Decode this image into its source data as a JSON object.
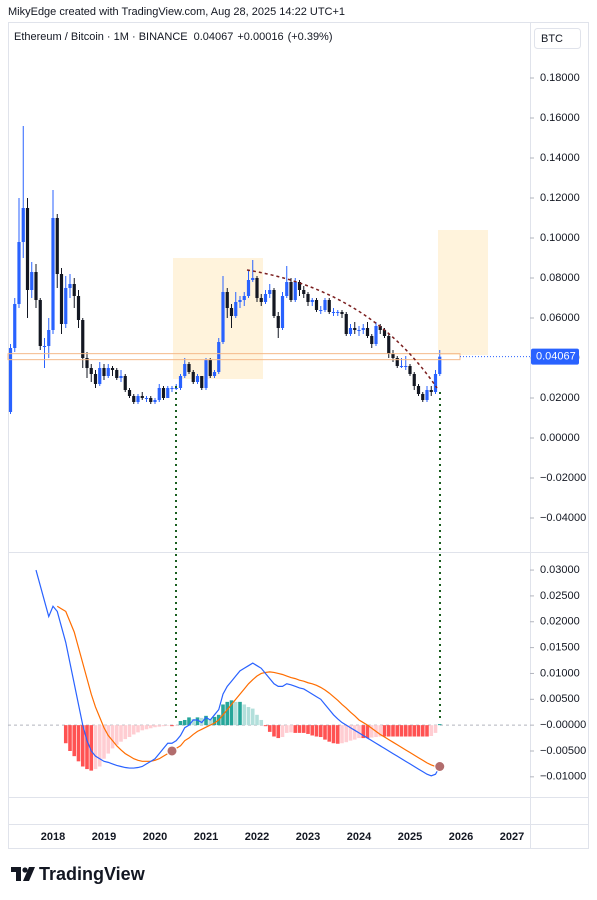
{
  "watermark": "MikyEdge created with TradingView.com, Aug 28, 2025 14:22 UTC+1",
  "currency": "BTC",
  "brand": "TradingView",
  "chart_data": [
    {
      "type": "candlestick",
      "title": "Ethereum / Bitcoin · 1M · BINANCE",
      "change": "+0.00016",
      "change_pct": "(+0.39%)",
      "up_color": "#2962ff",
      "down_color": "#131722",
      "last_color": "#f57c00",
      "grid": false,
      "ylim": [
        -0.057,
        0.208
      ],
      "yticks": [
        {
          "value": 0.18,
          "label": "0.18000"
        },
        {
          "value": 0.16,
          "label": "0.16000"
        },
        {
          "value": 0.14,
          "label": "0.14000"
        },
        {
          "value": 0.12,
          "label": "0.12000"
        },
        {
          "value": 0.1,
          "label": "0.10000"
        },
        {
          "value": 0.08,
          "label": "0.08000"
        },
        {
          "value": 0.06,
          "label": "0.06000"
        },
        {
          "value": 0.04,
          "label": "0.04000"
        },
        {
          "value": 0.02,
          "label": "0.02000"
        },
        {
          "value": 0,
          "label": "0.00000"
        },
        {
          "value": -0.02,
          "label": "−0.02000"
        },
        {
          "value": -0.04,
          "label": "−0.04000"
        }
      ],
      "categories": [
        null,
        null,
        null,
        null,
        null,
        null,
        null,
        null,
        null,
        null,
        "2018",
        null,
        null,
        null,
        null,
        null,
        null,
        null,
        null,
        null,
        null,
        null,
        "2019",
        null,
        null,
        null,
        null,
        null,
        null,
        null,
        null,
        null,
        null,
        null,
        "2020",
        null,
        null,
        null,
        null,
        null,
        null,
        null,
        null,
        null,
        null,
        null,
        "2021",
        null,
        null,
        null,
        null,
        null,
        null,
        null,
        null,
        null,
        null,
        null,
        "2022",
        null,
        null,
        null,
        null,
        null,
        null,
        null,
        null,
        null,
        null,
        null,
        "2023",
        null,
        null,
        null,
        null,
        null,
        null,
        null,
        null,
        null,
        null,
        null,
        "2024",
        null,
        null,
        null,
        null,
        null,
        null,
        null,
        null,
        null,
        null,
        null,
        "2025",
        null,
        null,
        null,
        null,
        null,
        null,
        null,
        null,
        null,
        null,
        null,
        "2026",
        null,
        null,
        null,
        null,
        null,
        null,
        null,
        null,
        null,
        null,
        null,
        "2027",
        null,
        null,
        null,
        null
      ],
      "open": [
        0.013,
        0.045,
        0.067,
        0.098,
        0.115,
        0.074,
        0.083,
        0.069,
        0.046,
        0.046,
        0.054,
        0.11,
        0.082,
        0.057,
        0.075,
        0.077,
        0.071,
        0.059,
        0.04,
        0.035,
        0.032,
        0.027,
        0.035,
        0.031,
        0.035,
        0.034,
        0.03,
        0.031,
        0.024,
        0.021,
        0.018,
        0.021,
        0.02,
        0.02,
        0.018,
        0.019,
        0.025,
        0.02,
        0.025,
        0.025,
        0.025,
        0.031,
        0.037,
        0.033,
        0.028,
        0.031,
        0.025,
        0.039,
        0.031,
        0.033,
        0.048,
        0.073,
        0.065,
        0.061,
        0.068,
        0.069,
        0.071,
        0.079,
        0.08,
        0.07,
        0.068,
        0.072,
        0.074,
        0.061,
        0.055,
        0.071,
        0.078,
        0.069,
        0.078,
        0.074,
        0.072,
        0.068,
        0.069,
        0.064,
        0.064,
        0.069,
        0.063,
        0.063,
        0.063,
        0.062,
        0.052,
        0.055,
        0.054,
        0.054,
        0.055,
        0.051,
        0.047,
        0.056,
        0.054,
        0.051,
        0.042,
        0.04,
        0.036,
        0.036,
        0.036,
        0.032,
        0.026,
        0.022,
        0.019,
        0.024,
        0.023,
        0.032,
        null,
        null,
        null,
        null,
        null,
        null,
        null,
        null,
        null,
        null,
        null,
        null,
        null,
        null,
        null,
        null,
        null,
        null,
        null,
        null,
        null
      ],
      "high": [
        0.047,
        0.07,
        0.12,
        0.156,
        0.12,
        0.088,
        0.087,
        0.07,
        0.05,
        0.06,
        0.124,
        0.112,
        0.085,
        0.081,
        0.082,
        0.08,
        0.074,
        0.06,
        0.043,
        0.037,
        0.034,
        0.038,
        0.037,
        0.037,
        0.036,
        0.035,
        0.034,
        0.032,
        0.025,
        0.022,
        0.022,
        0.023,
        0.021,
        0.021,
        0.02,
        0.027,
        0.026,
        0.026,
        0.026,
        0.027,
        0.032,
        0.04,
        0.038,
        0.034,
        0.032,
        0.031,
        0.04,
        0.04,
        0.034,
        0.05,
        0.081,
        0.075,
        0.067,
        0.073,
        0.071,
        0.073,
        0.084,
        0.089,
        0.081,
        0.072,
        0.074,
        0.077,
        0.075,
        0.063,
        0.073,
        0.086,
        0.08,
        0.08,
        0.079,
        0.076,
        0.073,
        0.07,
        0.07,
        0.066,
        0.07,
        0.07,
        0.065,
        0.064,
        0.064,
        0.063,
        0.057,
        0.058,
        0.056,
        0.057,
        0.058,
        0.052,
        0.058,
        0.057,
        0.055,
        0.052,
        0.044,
        0.041,
        0.04,
        0.041,
        0.037,
        0.033,
        0.027,
        0.023,
        0.026,
        0.026,
        0.034,
        0.044,
        null,
        null,
        null,
        null,
        null,
        null,
        null,
        null,
        null,
        null,
        null,
        null,
        null,
        null,
        null,
        null,
        null,
        null,
        null,
        null,
        null
      ],
      "low": [
        0.012,
        0.043,
        0.065,
        0.09,
        0.06,
        0.07,
        0.065,
        0.044,
        0.035,
        0.04,
        0.052,
        0.075,
        0.052,
        0.055,
        0.07,
        0.065,
        0.055,
        0.035,
        0.03,
        0.028,
        0.025,
        0.026,
        0.029,
        0.03,
        0.031,
        0.029,
        0.028,
        0.023,
        0.02,
        0.017,
        0.017,
        0.019,
        0.018,
        0.017,
        0.017,
        0.018,
        0.019,
        0.02,
        0.023,
        0.024,
        0.024,
        0.03,
        0.032,
        0.027,
        0.027,
        0.024,
        0.024,
        0.03,
        0.03,
        0.032,
        0.047,
        0.06,
        0.055,
        0.06,
        0.065,
        0.066,
        0.07,
        0.078,
        0.068,
        0.066,
        0.067,
        0.07,
        0.06,
        0.05,
        0.054,
        0.07,
        0.068,
        0.068,
        0.071,
        0.07,
        0.066,
        0.066,
        0.063,
        0.062,
        0.063,
        0.062,
        0.061,
        0.061,
        0.06,
        0.051,
        0.051,
        0.052,
        0.051,
        0.052,
        0.05,
        0.045,
        0.046,
        0.052,
        0.05,
        0.04,
        0.038,
        0.035,
        0.035,
        0.034,
        0.031,
        0.024,
        0.021,
        0.018,
        0.018,
        0.021,
        0.022,
        0.031,
        null,
        null,
        null,
        null,
        null,
        null,
        null,
        null,
        null,
        null,
        null,
        null,
        null,
        null,
        null,
        null,
        null,
        null,
        null,
        null,
        null
      ],
      "close": [
        0.045,
        0.067,
        0.098,
        0.115,
        0.074,
        0.083,
        0.069,
        0.046,
        0.046,
        0.054,
        0.11,
        0.082,
        0.057,
        0.075,
        0.077,
        0.071,
        0.059,
        0.04,
        0.035,
        0.032,
        0.027,
        0.035,
        0.031,
        0.035,
        0.034,
        0.03,
        0.031,
        0.024,
        0.021,
        0.018,
        0.021,
        0.02,
        0.02,
        0.018,
        0.019,
        0.025,
        0.02,
        0.025,
        0.025,
        0.025,
        0.031,
        0.037,
        0.033,
        0.028,
        0.031,
        0.025,
        0.039,
        0.031,
        0.033,
        0.048,
        0.073,
        0.065,
        0.061,
        0.068,
        0.069,
        0.071,
        0.079,
        0.08,
        0.07,
        0.068,
        0.072,
        0.074,
        0.061,
        0.055,
        0.071,
        0.078,
        0.069,
        0.078,
        0.074,
        0.072,
        0.068,
        0.069,
        0.064,
        0.064,
        0.069,
        0.063,
        0.063,
        0.063,
        0.062,
        0.052,
        0.055,
        0.054,
        0.054,
        0.055,
        0.051,
        0.047,
        0.056,
        0.054,
        0.051,
        0.042,
        0.04,
        0.036,
        0.036,
        0.036,
        0.032,
        0.026,
        0.022,
        0.019,
        0.024,
        0.023,
        0.032,
        0.04067,
        null,
        null,
        null,
        null,
        null,
        null,
        null,
        null,
        null,
        null,
        null,
        null,
        null,
        null,
        null,
        null,
        null,
        null,
        null,
        null,
        null
      ]
    },
    {
      "type": "macd",
      "ylim": [
        -0.0139,
        0.0333
      ],
      "grid": false,
      "yticks": [
        {
          "value": 0.03,
          "label": "0.03000"
        },
        {
          "value": 0.025,
          "label": "0.02500"
        },
        {
          "value": 0.02,
          "label": "0.02000"
        },
        {
          "value": 0.015,
          "label": "0.01500"
        },
        {
          "value": 0.01,
          "label": "0.01000"
        },
        {
          "value": 0.005,
          "label": "0.00500"
        },
        {
          "value": 0,
          "label": "−0.00000"
        },
        {
          "value": -0.005,
          "label": "−0.00500"
        },
        {
          "value": -0.01,
          "label": "−0.01000"
        }
      ],
      "macd_color": "#2962ff",
      "signal_color": "#ff6d00",
      "histogram_colors": [
        "#26a69a",
        "#b2dfdb",
        "#ff5252",
        "#ffcdd2"
      ],
      "macd": [
        null,
        null,
        null,
        null,
        null,
        null,
        0.03,
        0.027,
        0.024,
        0.021,
        0.023,
        0.022,
        0.019,
        0.016,
        0.012,
        0.008,
        0.004,
        0,
        -0.003,
        -0.005,
        -0.006,
        -0.0065,
        -0.007,
        -0.0072,
        -0.0075,
        -0.0078,
        -0.008,
        -0.0082,
        -0.0083,
        -0.0083,
        -0.0082,
        -0.008,
        -0.0075,
        -0.007,
        -0.0065,
        -0.0055,
        -0.0045,
        -0.0035,
        -0.0035,
        -0.003,
        -0.002,
        -0.0005,
        0,
        0.001,
        0.001,
        0.0005,
        0.0015,
        0.001,
        0.002,
        0.003,
        0.006,
        0.0075,
        0.0085,
        0.0095,
        0.0105,
        0.011,
        0.0115,
        0.012,
        0.0115,
        0.011,
        0.01,
        0.009,
        0.008,
        0.0075,
        0.0075,
        0.008,
        0.0078,
        0.0075,
        0.0072,
        0.007,
        0.0065,
        0.006,
        0.0055,
        0.005,
        0.004,
        0.003,
        0.002,
        0.0012,
        0.0005,
        0,
        -0.0005,
        -0.001,
        -0.0015,
        -0.002,
        -0.0025,
        -0.003,
        -0.0035,
        -0.004,
        -0.0045,
        -0.005,
        -0.0055,
        -0.006,
        -0.0065,
        -0.007,
        -0.0075,
        -0.008,
        -0.0085,
        -0.009,
        -0.0095,
        -0.0098,
        -0.0095,
        -0.008,
        null,
        null,
        null,
        null,
        null,
        null,
        null,
        null,
        null,
        null,
        null,
        null,
        null,
        null,
        null,
        null,
        null,
        null,
        null,
        null,
        null
      ],
      "signal": [
        null,
        null,
        null,
        null,
        null,
        null,
        null,
        null,
        null,
        null,
        null,
        0.023,
        0.0225,
        0.022,
        0.02,
        0.018,
        0.015,
        0.012,
        0.009,
        0.006,
        0.0035,
        0.0015,
        -0.0005,
        -0.002,
        -0.003,
        -0.004,
        -0.0048,
        -0.0055,
        -0.006,
        -0.0065,
        -0.0068,
        -0.007,
        -0.007,
        -0.007,
        -0.0068,
        -0.0065,
        -0.006,
        -0.0055,
        -0.005,
        -0.0045,
        -0.004,
        -0.003,
        -0.0025,
        -0.0018,
        -0.0012,
        -0.0008,
        -0.0004,
        0,
        0.0004,
        0.001,
        0.002,
        0.003,
        0.004,
        0.005,
        0.006,
        0.007,
        0.008,
        0.0088,
        0.0095,
        0.01,
        0.0102,
        0.0103,
        0.0102,
        0.01,
        0.0098,
        0.0095,
        0.0092,
        0.009,
        0.0087,
        0.0085,
        0.0082,
        0.008,
        0.0077,
        0.0073,
        0.0068,
        0.0062,
        0.0055,
        0.0048,
        0.004,
        0.0033,
        0.0025,
        0.0018,
        0.001,
        0.0005,
        0,
        -0.0006,
        -0.0012,
        -0.0018,
        -0.0023,
        -0.0028,
        -0.0033,
        -0.0038,
        -0.0043,
        -0.0048,
        -0.0053,
        -0.0058,
        -0.0063,
        -0.0068,
        -0.0073,
        -0.0077,
        -0.008,
        -0.008,
        null,
        null,
        null,
        null,
        null,
        null,
        null,
        null,
        null,
        null,
        null,
        null,
        null,
        null,
        null,
        null,
        null,
        null,
        null,
        null,
        null
      ],
      "histogram": [
        null,
        null,
        null,
        null,
        null,
        null,
        null,
        null,
        null,
        null,
        null,
        null,
        null,
        -0.0035,
        -0.005,
        -0.006,
        -0.007,
        -0.008,
        -0.0085,
        -0.0088,
        -0.0085,
        -0.008,
        -0.0065,
        -0.0055,
        -0.0045,
        -0.0038,
        -0.0032,
        -0.0027,
        -0.0023,
        -0.0018,
        -0.0014,
        -0.001,
        -0.0008,
        -0.0006,
        -0.0004,
        -0.0003,
        -0.0002,
        -0.0001,
        -0.0002,
        -0.0001,
        0.0008,
        0.001,
        0.0015,
        0.0012,
        0.0015,
        0.0014,
        0.0018,
        0.0012,
        0.0016,
        0.002,
        0.004,
        0.0045,
        0.0048,
        0.0045,
        0.0045,
        0.004,
        0.0035,
        0.0032,
        0.002,
        0.001,
        -0.0002,
        -0.0013,
        -0.0022,
        -0.0025,
        -0.0023,
        -0.0015,
        -0.0014,
        -0.0015,
        -0.0015,
        -0.0015,
        -0.0017,
        -0.002,
        -0.0022,
        -0.0023,
        -0.0028,
        -0.0032,
        -0.0035,
        -0.0036,
        -0.0035,
        -0.0033,
        -0.003,
        -0.0028,
        -0.0025,
        -0.0025,
        -0.0025,
        -0.0024,
        -0.0023,
        -0.0022,
        -0.0022,
        -0.0022,
        -0.0022,
        -0.0022,
        -0.0022,
        -0.0022,
        -0.0022,
        -0.0022,
        -0.0022,
        -0.0022,
        -0.0022,
        -0.0021,
        -0.0015,
        0.0002,
        null,
        null,
        null,
        null,
        null,
        null,
        null,
        null,
        null,
        null,
        null,
        null,
        null,
        null,
        null,
        null,
        null,
        null,
        null,
        null,
        null
      ]
    }
  ]
}
